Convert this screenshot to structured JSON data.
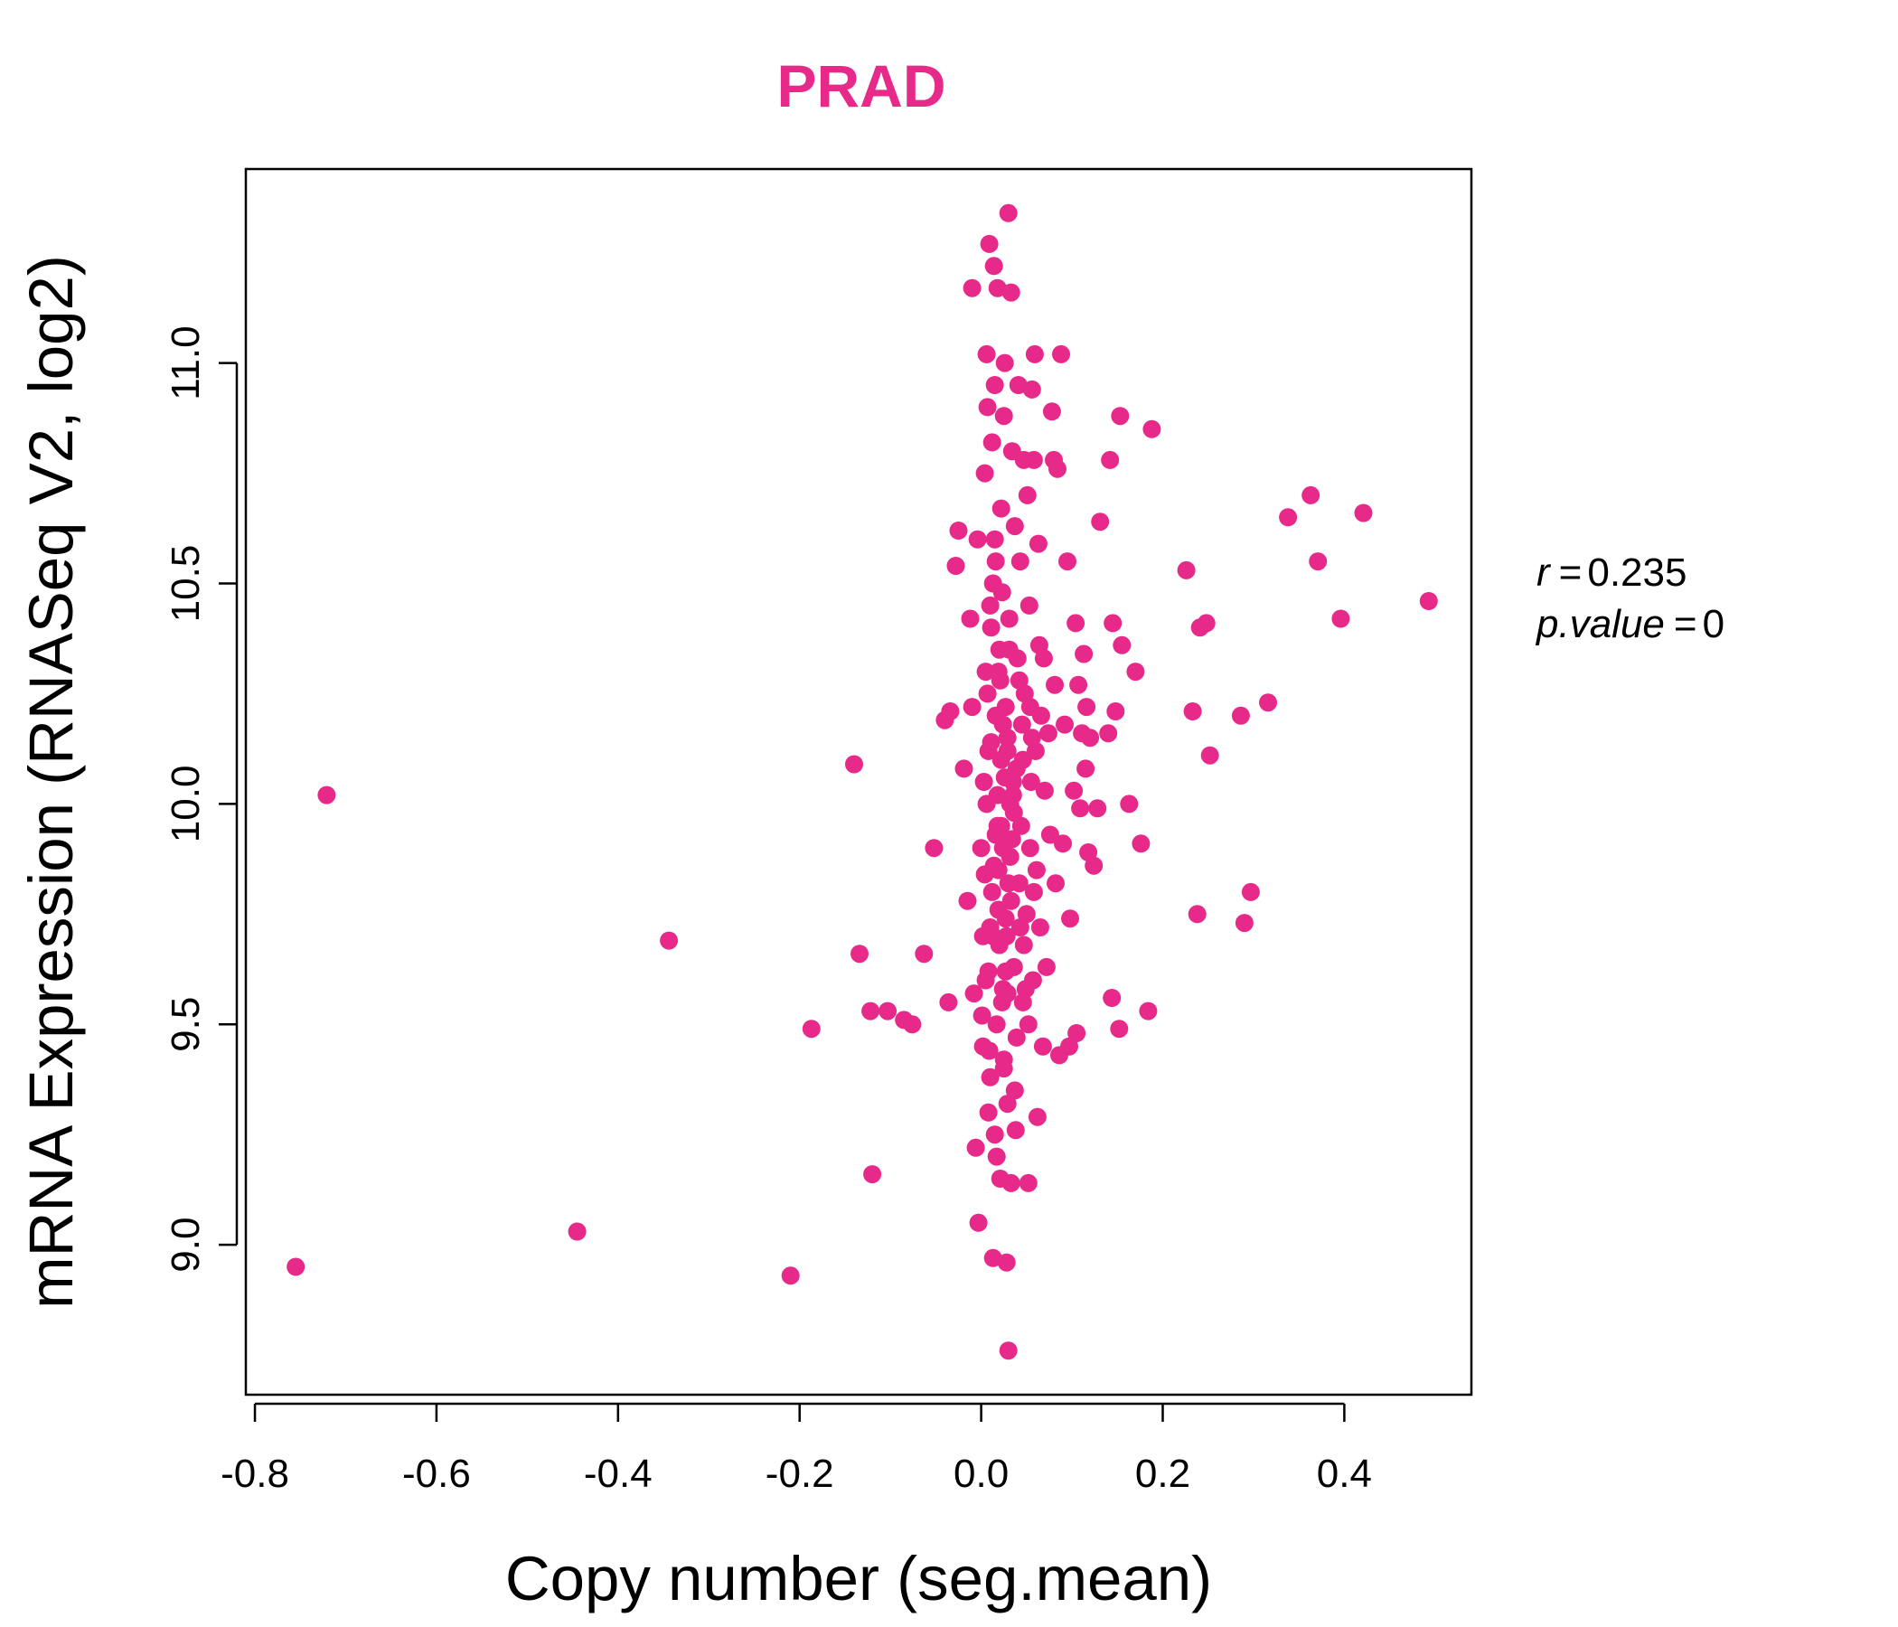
{
  "chart_data": {
    "type": "scatter",
    "title": "PRAD",
    "xlabel": "Copy number (seg.mean)",
    "ylabel": "mRNA Expression (RNASeq V2, log2)",
    "xlim": [
      -0.81,
      0.54
    ],
    "ylim": [
      8.66,
      11.44
    ],
    "x_ticks": [
      -0.8,
      -0.6,
      -0.4,
      -0.2,
      0.0,
      0.2,
      0.4
    ],
    "x_tick_labels": [
      "-0.8",
      "-0.6",
      "-0.4",
      "-0.2",
      "0.0",
      "0.2",
      "0.4"
    ],
    "y_ticks": [
      9.0,
      9.5,
      10.0,
      10.5,
      11.0
    ],
    "y_tick_labels": [
      "9.0",
      "9.5",
      "10.0",
      "10.5",
      "11.0"
    ],
    "point_color": "#E7298A",
    "stats": {
      "r_label": "r",
      "r_value": "0.235",
      "p_label": "p.value",
      "p_value": "0"
    },
    "series": [
      {
        "name": "samples",
        "points": [
          [
            -0.755,
            8.95
          ],
          [
            -0.721,
            10.02
          ],
          [
            -0.445,
            9.03
          ],
          [
            -0.344,
            9.69
          ],
          [
            -0.21,
            8.93
          ],
          [
            -0.187,
            9.49
          ],
          [
            -0.14,
            10.09
          ],
          [
            -0.134,
            9.66
          ],
          [
            -0.122,
            9.53
          ],
          [
            -0.12,
            9.16
          ],
          [
            -0.103,
            9.53
          ],
          [
            -0.085,
            9.51
          ],
          [
            -0.076,
            9.5
          ],
          [
            -0.063,
            9.66
          ],
          [
            -0.052,
            9.9
          ],
          [
            -0.04,
            10.19
          ],
          [
            -0.034,
            10.21
          ],
          [
            -0.036,
            9.55
          ],
          [
            -0.028,
            10.54
          ],
          [
            -0.025,
            10.62
          ],
          [
            -0.019,
            10.08
          ],
          [
            -0.015,
            9.78
          ],
          [
            -0.012,
            10.42
          ],
          [
            -0.01,
            10.22
          ],
          [
            -0.008,
            9.57
          ],
          [
            -0.006,
            9.22
          ],
          [
            -0.01,
            11.17
          ],
          [
            -0.004,
            10.6
          ],
          [
            -0.003,
            9.05
          ],
          [
            0.0,
            9.9
          ],
          [
            0.001,
            9.52
          ],
          [
            0.002,
            9.45
          ],
          [
            0.004,
            10.75
          ],
          [
            0.005,
            10.3
          ],
          [
            0.006,
            11.02
          ],
          [
            0.007,
            10.9
          ],
          [
            0.008,
            9.62
          ],
          [
            0.008,
            9.3
          ],
          [
            0.009,
            11.27
          ],
          [
            0.01,
            9.38
          ],
          [
            0.01,
            10.45
          ],
          [
            0.011,
            10.14
          ],
          [
            0.012,
            10.82
          ],
          [
            0.013,
            9.7
          ],
          [
            0.013,
            8.97
          ],
          [
            0.014,
            11.22
          ],
          [
            0.015,
            10.95
          ],
          [
            0.015,
            9.25
          ],
          [
            0.016,
            10.55
          ],
          [
            0.017,
            9.2
          ],
          [
            0.018,
            11.17
          ],
          [
            0.018,
            10.02
          ],
          [
            0.019,
            9.85
          ],
          [
            0.02,
            10.35
          ],
          [
            0.021,
            9.15
          ],
          [
            0.022,
            10.67
          ],
          [
            0.022,
            9.95
          ],
          [
            0.023,
            10.48
          ],
          [
            0.024,
            9.58
          ],
          [
            0.025,
            10.88
          ],
          [
            0.025,
            9.42
          ],
          [
            0.026,
            11.0
          ],
          [
            0.027,
            10.22
          ],
          [
            0.027,
            9.74
          ],
          [
            0.028,
            8.96
          ],
          [
            0.029,
            10.12
          ],
          [
            0.029,
            9.32
          ],
          [
            0.03,
            11.34
          ],
          [
            0.03,
            8.76
          ],
          [
            0.031,
            10.42
          ],
          [
            0.032,
            9.88
          ],
          [
            0.033,
            11.16
          ],
          [
            0.033,
            9.14
          ],
          [
            0.034,
            10.8
          ],
          [
            0.035,
            10.05
          ],
          [
            0.036,
            9.63
          ],
          [
            0.037,
            10.63
          ],
          [
            0.038,
            9.26
          ],
          [
            0.039,
            9.47
          ],
          [
            0.04,
            10.33
          ],
          [
            0.041,
            10.95
          ],
          [
            0.042,
            9.82
          ],
          [
            0.043,
            10.55
          ],
          [
            0.044,
            9.95
          ],
          [
            0.045,
            10.18
          ],
          [
            0.046,
            9.55
          ],
          [
            0.047,
            10.78
          ],
          [
            0.048,
            10.25
          ],
          [
            0.05,
            9.75
          ],
          [
            0.051,
            10.7
          ],
          [
            0.052,
            9.14
          ],
          [
            0.053,
            10.45
          ],
          [
            0.054,
            9.9
          ],
          [
            0.055,
            10.05
          ],
          [
            0.056,
            10.94
          ],
          [
            0.057,
            9.6
          ],
          [
            0.058,
            10.78
          ],
          [
            0.059,
            11.02
          ],
          [
            0.06,
            10.12
          ],
          [
            0.061,
            9.85
          ],
          [
            0.062,
            9.29
          ],
          [
            0.063,
            10.59
          ],
          [
            0.064,
            10.36
          ],
          [
            0.065,
            9.72
          ],
          [
            0.066,
            10.2
          ],
          [
            0.068,
            9.45
          ],
          [
            0.069,
            10.33
          ],
          [
            0.07,
            10.03
          ],
          [
            0.072,
            9.63
          ],
          [
            0.074,
            10.16
          ],
          [
            0.076,
            9.93
          ],
          [
            0.078,
            10.89
          ],
          [
            0.08,
            10.78
          ],
          [
            0.081,
            10.27
          ],
          [
            0.082,
            9.82
          ],
          [
            0.084,
            10.76
          ],
          [
            0.086,
            9.43
          ],
          [
            0.088,
            11.02
          ],
          [
            0.09,
            9.91
          ],
          [
            0.092,
            10.18
          ],
          [
            0.095,
            10.55
          ],
          [
            0.097,
            9.45
          ],
          [
            0.098,
            9.74
          ],
          [
            0.102,
            10.03
          ],
          [
            0.104,
            10.41
          ],
          [
            0.105,
            9.48
          ],
          [
            0.107,
            10.27
          ],
          [
            0.109,
            9.99
          ],
          [
            0.111,
            10.16
          ],
          [
            0.113,
            10.34
          ],
          [
            0.115,
            10.08
          ],
          [
            0.116,
            10.22
          ],
          [
            0.118,
            9.89
          ],
          [
            0.12,
            10.15
          ],
          [
            0.124,
            9.86
          ],
          [
            0.128,
            9.99
          ],
          [
            0.131,
            10.64
          ],
          [
            0.14,
            10.16
          ],
          [
            0.142,
            10.78
          ],
          [
            0.144,
            9.56
          ],
          [
            0.145,
            10.41
          ],
          [
            0.148,
            10.21
          ],
          [
            0.152,
            9.49
          ],
          [
            0.153,
            10.88
          ],
          [
            0.155,
            10.36
          ],
          [
            0.163,
            10.0
          ],
          [
            0.17,
            10.3
          ],
          [
            0.176,
            9.91
          ],
          [
            0.184,
            9.53
          ],
          [
            0.188,
            10.85
          ],
          [
            0.226,
            10.53
          ],
          [
            0.233,
            10.21
          ],
          [
            0.238,
            9.75
          ],
          [
            0.241,
            10.4
          ],
          [
            0.248,
            10.41
          ],
          [
            0.252,
            10.11
          ],
          [
            0.286,
            10.2
          ],
          [
            0.29,
            9.73
          ],
          [
            0.297,
            9.8
          ],
          [
            0.316,
            10.23
          ],
          [
            0.338,
            10.65
          ],
          [
            0.363,
            10.7
          ],
          [
            0.371,
            10.55
          ],
          [
            0.396,
            10.42
          ],
          [
            0.421,
            10.66
          ],
          [
            0.493,
            10.46
          ],
          [
            0.005,
            9.6
          ],
          [
            0.012,
            9.8
          ],
          [
            0.018,
            9.95
          ],
          [
            0.022,
            10.1
          ],
          [
            0.028,
            9.7
          ],
          [
            0.006,
            10.0
          ],
          [
            0.016,
            10.2
          ],
          [
            0.024,
            9.9
          ],
          [
            0.032,
            10.0
          ],
          [
            0.01,
            9.72
          ],
          [
            0.02,
            9.68
          ],
          [
            0.03,
            9.82
          ],
          [
            0.014,
            9.86
          ],
          [
            0.026,
            10.06
          ],
          [
            0.034,
            9.92
          ],
          [
            0.004,
            9.84
          ],
          [
            0.019,
            10.3
          ],
          [
            0.036,
            9.98
          ],
          [
            0.008,
            10.12
          ],
          [
            0.023,
            9.55
          ],
          [
            0.011,
            10.4
          ],
          [
            0.029,
            10.15
          ],
          [
            0.017,
            9.5
          ],
          [
            0.039,
            10.08
          ],
          [
            0.003,
            10.05
          ],
          [
            0.027,
            9.62
          ],
          [
            0.015,
            10.6
          ],
          [
            0.021,
            10.28
          ],
          [
            0.033,
            9.78
          ],
          [
            0.009,
            9.44
          ],
          [
            0.043,
            9.72
          ],
          [
            0.046,
            10.1
          ],
          [
            0.049,
            9.58
          ],
          [
            0.054,
            10.22
          ],
          [
            0.058,
            9.8
          ],
          [
            0.002,
            9.7
          ],
          [
            0.007,
            10.25
          ],
          [
            0.013,
            10.5
          ],
          [
            0.025,
            9.4
          ],
          [
            0.031,
            10.35
          ],
          [
            0.037,
            9.35
          ],
          [
            0.042,
            10.28
          ],
          [
            0.047,
            9.68
          ],
          [
            0.052,
            9.5
          ],
          [
            0.056,
            10.15
          ],
          [
            0.019,
            9.76
          ],
          [
            0.024,
            10.18
          ],
          [
            0.029,
            9.57
          ],
          [
            0.016,
            9.93
          ],
          [
            0.035,
            10.02
          ]
        ]
      }
    ]
  }
}
